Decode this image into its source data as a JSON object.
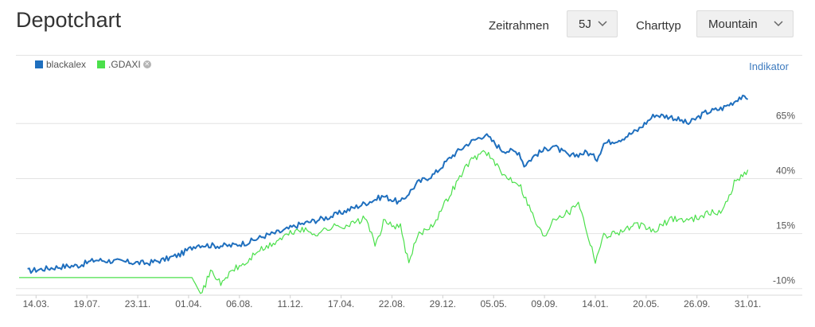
{
  "page_title": "Depotchart",
  "controls": {
    "timeframe_label": "Zeitrahmen",
    "timeframe_value": "5J",
    "charttype_label": "Charttyp",
    "charttype_value": "Mountain"
  },
  "indicator_label": "Indikator",
  "colors": {
    "accent": "#2e77c3",
    "series_blackalex": "#1f6fbe",
    "series_gdaxi": "#4be04b",
    "grid": "#e3e3e3"
  },
  "chart_data": {
    "type": "line",
    "legend_position": "top-left",
    "grid": true,
    "ylim": [
      -13,
      85
    ],
    "y_ticks": [
      {
        "value": -10,
        "label": "-10%"
      },
      {
        "value": 15,
        "label": "15%"
      },
      {
        "value": 40,
        "label": "40%"
      },
      {
        "value": 65,
        "label": "65%"
      }
    ],
    "x_ticks": [
      "14.03.",
      "19.07.",
      "23.11.",
      "01.04.",
      "06.08.",
      "11.12.",
      "17.04.",
      "22.08.",
      "29.12.",
      "05.05.",
      "09.09.",
      "14.01.",
      "20.05.",
      "26.09.",
      "31.01."
    ],
    "x_tick_positions": [
      0.5,
      3.5,
      6.5,
      9.5,
      12.5,
      15.5,
      18.5,
      21.5,
      24.5,
      27.5,
      30.5,
      33.5,
      36.5,
      39.5,
      42.5
    ],
    "x_range": [
      -0.5,
      42.8
    ],
    "series": [
      {
        "name": "blackalex",
        "color": "#1f6fbe",
        "x": [
          0,
          1,
          2,
          3,
          4,
          5,
          6,
          7,
          8,
          9,
          10,
          11,
          12,
          13,
          14,
          15,
          16,
          17,
          18,
          19,
          20,
          21,
          22,
          23,
          24,
          25,
          26,
          27,
          28,
          29,
          29.3,
          30,
          31,
          32,
          33,
          33.6,
          34,
          35,
          36,
          37,
          38,
          39,
          40,
          41,
          41.7,
          42,
          42.5
        ],
        "values": [
          -2,
          -1,
          0,
          0.5,
          3,
          2.5,
          2,
          1.5,
          3,
          5.5,
          10,
          9.5,
          9.5,
          11,
          14,
          16,
          19,
          21,
          23,
          26,
          29,
          32,
          29,
          38,
          42,
          50,
          56,
          60,
          53,
          52,
          46,
          51,
          55,
          50,
          52,
          49,
          56,
          58,
          62,
          69,
          68,
          65,
          70,
          72,
          75,
          77,
          76
        ]
      },
      {
        "name": ".GDAXI",
        "color": "#4be04b",
        "x": [
          -0.5,
          9.8,
          10.3,
          10.8,
          11.5,
          12,
          13,
          13.5,
          14,
          15,
          16,
          17,
          18,
          19,
          20,
          20.5,
          21,
          22,
          22.5,
          23,
          24,
          25,
          26,
          27,
          28,
          29,
          30,
          30.5,
          31,
          32,
          32.5,
          33,
          33.5,
          34,
          35,
          36,
          37,
          38,
          39,
          40,
          41,
          41.7,
          42.5
        ],
        "values": [
          -5,
          -5,
          -12,
          -2,
          -8,
          -2,
          2,
          7,
          8,
          13,
          17,
          15,
          18,
          19,
          22,
          9,
          20,
          18,
          1,
          14,
          20,
          34,
          47,
          53,
          42,
          38,
          20,
          13,
          22,
          25,
          30,
          16,
          3,
          14,
          16,
          19,
          16,
          22,
          21,
          24,
          25,
          38,
          44
        ]
      }
    ]
  }
}
